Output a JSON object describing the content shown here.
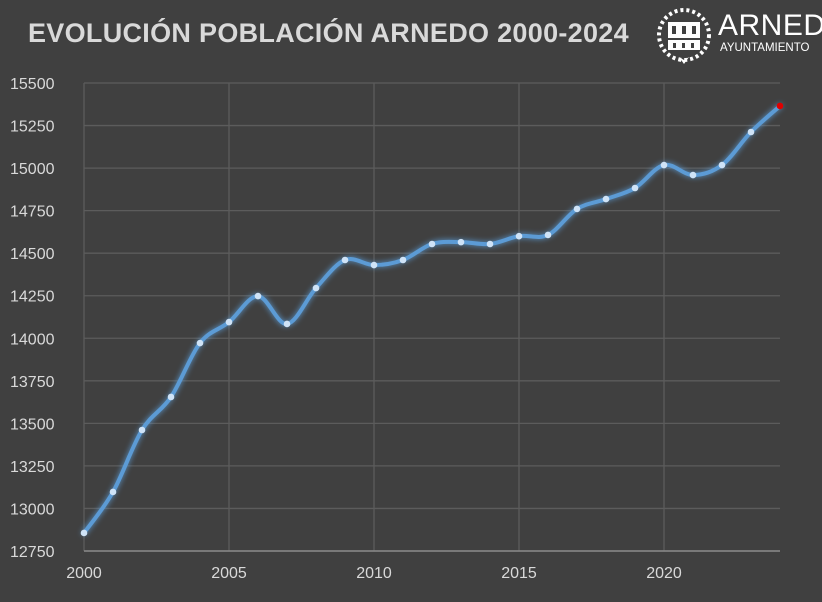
{
  "chart_data": {
    "type": "line",
    "title": "EVOLUCIÓN POBLACIÓN ARNEDO 2000-2024",
    "xlabel": "",
    "ylabel": "",
    "x": [
      2000,
      2001,
      2002,
      2003,
      2004,
      2005,
      2006,
      2007,
      2008,
      2009,
      2010,
      2011,
      2012,
      2013,
      2014,
      2015,
      2016,
      2017,
      2018,
      2019,
      2020,
      2021,
      2022,
      2023,
      2024
    ],
    "series": [
      {
        "name": "Población",
        "values": [
          12856,
          13097,
          13461,
          13655,
          13972,
          14095,
          14248,
          14084,
          14295,
          14460,
          14430,
          14460,
          14554,
          14565,
          14554,
          14600,
          14607,
          14760,
          14818,
          14883,
          15018,
          14959,
          15018,
          15212,
          15365
        ]
      }
    ],
    "xlim": [
      2000,
      2024
    ],
    "ylim": [
      12750,
      15500
    ],
    "x_ticks": [
      "2000",
      "2005",
      "2010",
      "2015",
      "2020"
    ],
    "y_ticks": [
      "12750",
      "13000",
      "13250",
      "13500",
      "13750",
      "14000",
      "14250",
      "14500",
      "14750",
      "15000",
      "15250",
      "15500"
    ],
    "grid": true,
    "legend": "none",
    "colors": {
      "line": "#5b9bd5",
      "marker": "#cfe3f7",
      "last_marker": "#e00000",
      "grid": "#5c5c5c"
    }
  },
  "logo": {
    "name": "ARNEDO",
    "subtitle": "AYUNTAMIENTO"
  }
}
